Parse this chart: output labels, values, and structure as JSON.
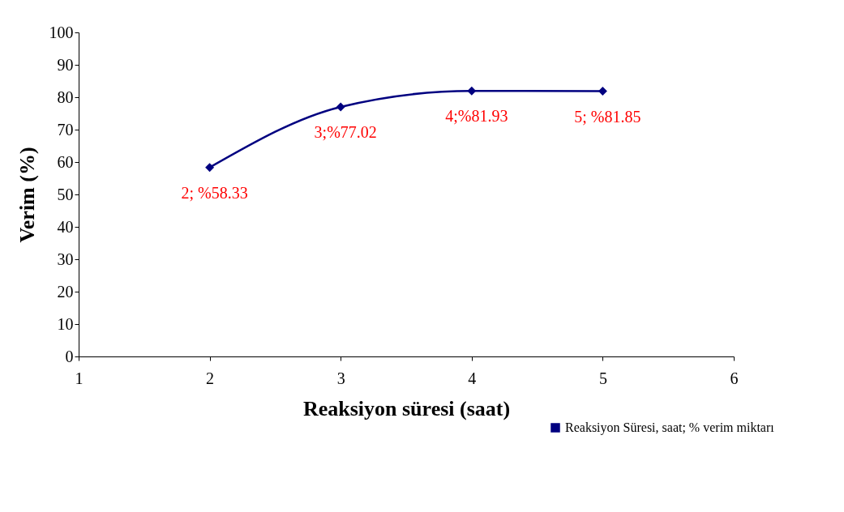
{
  "chart_data": {
    "type": "line",
    "xlabel": "Reaksiyon süresi (saat)",
    "ylabel": "Verim (%)",
    "x": [
      2,
      3,
      4,
      5
    ],
    "series": [
      {
        "name": "Reaksiyon Süresi, saat; % verim miktarı",
        "color": "#000080",
        "values": [
          58.33,
          77.02,
          81.93,
          81.85
        ],
        "value_labels": [
          "2; %58.33",
          "3;%77.02",
          "4;%81.93",
          "5; %81.85"
        ]
      }
    ],
    "xlim": [
      1,
      6
    ],
    "xticks": [
      1,
      2,
      3,
      4,
      5,
      6
    ],
    "ylim": [
      0,
      100
    ],
    "yticks": [
      0,
      10,
      20,
      30,
      40,
      50,
      60,
      70,
      80,
      90,
      100
    ],
    "grid": false,
    "legend": "bottom right",
    "marker": "diamond",
    "line_style": "solid"
  }
}
